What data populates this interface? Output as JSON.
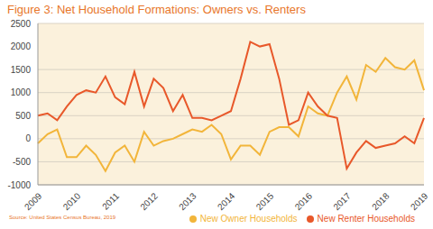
{
  "chart_data": {
    "type": "line",
    "title": "Figure 3: Net Household Formations: Owners vs. Renters",
    "source": "Source: United States Census Bureau, 2019",
    "categories": [
      "2009",
      null,
      null,
      null,
      "2010",
      null,
      null,
      null,
      "2011",
      null,
      null,
      null,
      "2012",
      null,
      null,
      null,
      "2013",
      null,
      null,
      null,
      "2014",
      null,
      null,
      null,
      "2015",
      null,
      null,
      null,
      "2016",
      null,
      null,
      null,
      "2017",
      null,
      null,
      null,
      "2018",
      null,
      null,
      null,
      "2019"
    ],
    "series": [
      {
        "name": "New Owner Households",
        "color": "#f2b53a",
        "values": [
          -100,
          100,
          200,
          -400,
          -400,
          -150,
          -350,
          -700,
          -300,
          -150,
          -500,
          150,
          -150,
          -50,
          0,
          100,
          200,
          150,
          300,
          100,
          -450,
          -150,
          -150,
          -350,
          150,
          250,
          250,
          50,
          700,
          550,
          500,
          1000,
          1350,
          850,
          1600,
          1450,
          1750,
          1550,
          1500,
          1700,
          1050
        ]
      },
      {
        "name": "New Renter Households",
        "color": "#e8582a",
        "values": [
          500,
          550,
          400,
          700,
          950,
          1050,
          1000,
          1350,
          900,
          750,
          1450,
          700,
          1300,
          1100,
          600,
          950,
          450,
          450,
          400,
          500,
          600,
          1300,
          2100,
          2000,
          2050,
          1300,
          300,
          400,
          1000,
          700,
          500,
          450,
          -650,
          -300,
          -50,
          -200,
          -150,
          -100,
          50,
          -100,
          450
        ]
      }
    ],
    "ylim": [
      -1000,
      2500
    ],
    "yticks": [
      -1000,
      -500,
      0,
      500,
      1000,
      1500,
      2000,
      2500
    ],
    "grid": true,
    "legend": "bottom right"
  }
}
